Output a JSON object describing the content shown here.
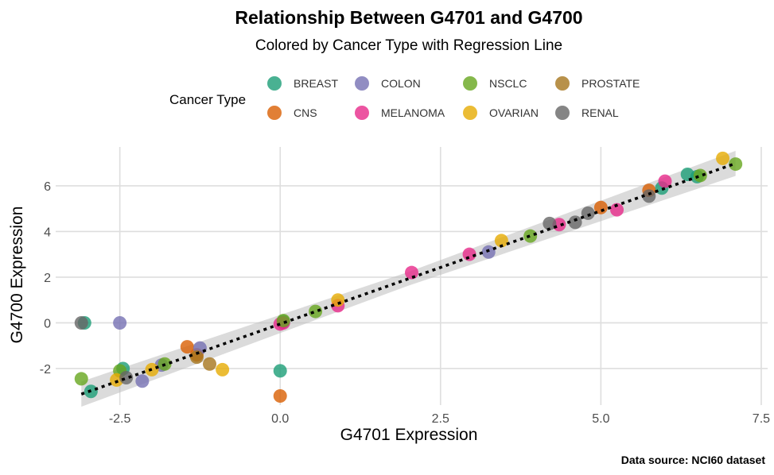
{
  "chart_data": {
    "type": "scatter",
    "title": "Relationship Between G4701 and G4700",
    "subtitle": "Colored by Cancer Type with Regression Line",
    "xlabel": "G4701 Expression",
    "ylabel": "G4700 Expression",
    "caption": "Data source: NCI60 dataset",
    "xlim": [
      -3.5,
      7.6
    ],
    "ylim": [
      -3.6,
      7.7
    ],
    "x_ticks": [
      -2.5,
      0.0,
      2.5,
      5.0,
      7.5
    ],
    "x_tick_labels": [
      "-2.5",
      "0.0",
      "2.5",
      "5.0",
      "7.5"
    ],
    "y_ticks": [
      -2,
      0,
      2,
      4,
      6
    ],
    "y_tick_labels": [
      "-2",
      "0",
      "2",
      "4",
      "6"
    ],
    "grid": true,
    "legend": {
      "title": "Cancer Type",
      "placement": "top",
      "entries": [
        {
          "name": "BREAST",
          "color": "#1b9e77"
        },
        {
          "name": "CNS",
          "color": "#d95f02"
        },
        {
          "name": "COLON",
          "color": "#7570b3"
        },
        {
          "name": "MELANOMA",
          "color": "#e7298a"
        },
        {
          "name": "NSCLC",
          "color": "#66a61e"
        },
        {
          "name": "OVARIAN",
          "color": "#e6ab02"
        },
        {
          "name": "PROSTATE",
          "color": "#a6761d"
        },
        {
          "name": "RENAL",
          "color": "#666666"
        }
      ]
    },
    "regression": {
      "slope": 0.99,
      "intercept": -0.05,
      "x_range": [
        -3.1,
        7.1
      ],
      "line_style": "dotted",
      "line_color": "#000000",
      "band_color": "#bdbdbd"
    },
    "series": [
      {
        "name": "BREAST",
        "color": "#1b9e77",
        "x": [
          -3.05,
          -2.95,
          -2.45,
          0.0,
          0.05,
          6.35,
          6.5,
          5.95
        ],
        "y": [
          0.0,
          -3.0,
          -2.0,
          -2.1,
          0.05,
          6.5,
          6.4,
          5.9
        ]
      },
      {
        "name": "CNS",
        "color": "#d95f02",
        "x": [
          -1.45,
          0.0,
          5.0,
          5.75,
          -1.3
        ],
        "y": [
          -1.05,
          -3.2,
          5.05,
          5.8,
          -1.4
        ]
      },
      {
        "name": "COLON",
        "color": "#7570b3",
        "x": [
          -2.5,
          -2.15,
          -1.25,
          -1.85,
          3.25
        ],
        "y": [
          0.0,
          -2.55,
          -1.1,
          -1.85,
          3.1
        ]
      },
      {
        "name": "MELANOMA",
        "color": "#e7298a",
        "x": [
          0.05,
          0.0,
          0.9,
          2.05,
          2.95,
          4.35,
          5.25,
          6.0
        ],
        "y": [
          0.0,
          -0.05,
          0.75,
          2.2,
          3.0,
          4.3,
          4.95,
          6.2
        ]
      },
      {
        "name": "NSCLC",
        "color": "#66a61e",
        "x": [
          -3.1,
          -1.8,
          0.55,
          0.05,
          3.9,
          6.55,
          7.1,
          -2.5
        ],
        "y": [
          -2.45,
          -1.8,
          0.5,
          0.1,
          3.8,
          6.45,
          6.95,
          -2.1
        ]
      },
      {
        "name": "OVARIAN",
        "color": "#e6ab02",
        "x": [
          -2.55,
          -2.0,
          -0.9,
          0.9,
          3.45,
          6.9
        ],
        "y": [
          -2.5,
          -2.05,
          -2.05,
          1.0,
          3.6,
          7.2
        ]
      },
      {
        "name": "PROSTATE",
        "color": "#a6761d",
        "x": [
          -1.1,
          -1.3
        ],
        "y": [
          -1.8,
          -1.5
        ]
      },
      {
        "name": "RENAL",
        "color": "#666666",
        "x": [
          -3.1,
          4.2,
          4.6,
          4.8,
          5.75,
          -2.4
        ],
        "y": [
          0.0,
          4.35,
          4.4,
          4.8,
          5.55,
          -2.4
        ]
      }
    ]
  }
}
